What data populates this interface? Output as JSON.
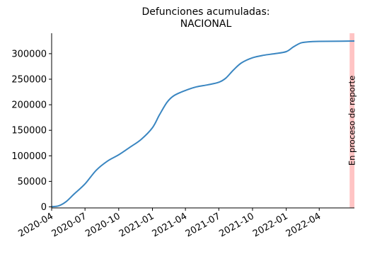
{
  "chart_data": {
    "type": "line",
    "title": "Defunciones acumuladas:",
    "subtitle": "NACIONAL",
    "xlabel": "",
    "ylabel": "",
    "x_range": [
      "2020-04-01",
      "2022-07-06"
    ],
    "y_range": [
      -2000,
      340000
    ],
    "y_ticks": [
      0,
      50000,
      100000,
      150000,
      200000,
      250000,
      300000
    ],
    "x_ticks": [
      "2020-04",
      "2020-07",
      "2020-10",
      "2021-01",
      "2021-04",
      "2021-07",
      "2021-10",
      "2022-01",
      "2022-04"
    ],
    "grid": false,
    "legend": "none",
    "series": [
      {
        "color": "#3a86c1",
        "points": [
          [
            "2020-04-01",
            500
          ],
          [
            "2020-04-20",
            2000
          ],
          [
            "2020-05-10",
            10000
          ],
          [
            "2020-06-01",
            25000
          ],
          [
            "2020-07-01",
            45000
          ],
          [
            "2020-08-01",
            72000
          ],
          [
            "2020-09-01",
            90000
          ],
          [
            "2020-10-01",
            102000
          ],
          [
            "2020-11-01",
            117000
          ],
          [
            "2020-12-01",
            132000
          ],
          [
            "2021-01-01",
            155000
          ],
          [
            "2021-01-20",
            180000
          ],
          [
            "2021-02-10",
            205000
          ],
          [
            "2021-03-01",
            218000
          ],
          [
            "2021-04-01",
            228000
          ],
          [
            "2021-05-01",
            235000
          ],
          [
            "2021-06-01",
            239000
          ],
          [
            "2021-07-01",
            244000
          ],
          [
            "2021-07-20",
            252000
          ],
          [
            "2021-08-10",
            268000
          ],
          [
            "2021-09-01",
            282000
          ],
          [
            "2021-10-01",
            292000
          ],
          [
            "2021-11-01",
            297000
          ],
          [
            "2021-12-01",
            300000
          ],
          [
            "2022-01-01",
            304000
          ],
          [
            "2022-01-20",
            313000
          ],
          [
            "2022-02-10",
            321000
          ],
          [
            "2022-03-01",
            323000
          ],
          [
            "2022-04-01",
            324000
          ],
          [
            "2022-06-01",
            324500
          ],
          [
            "2022-07-06",
            324700
          ]
        ]
      }
    ],
    "annotation_band": {
      "start": "2022-06-23",
      "end": "2022-07-06",
      "color": "#ffc4c4",
      "label": "En proceso de reporte"
    }
  }
}
